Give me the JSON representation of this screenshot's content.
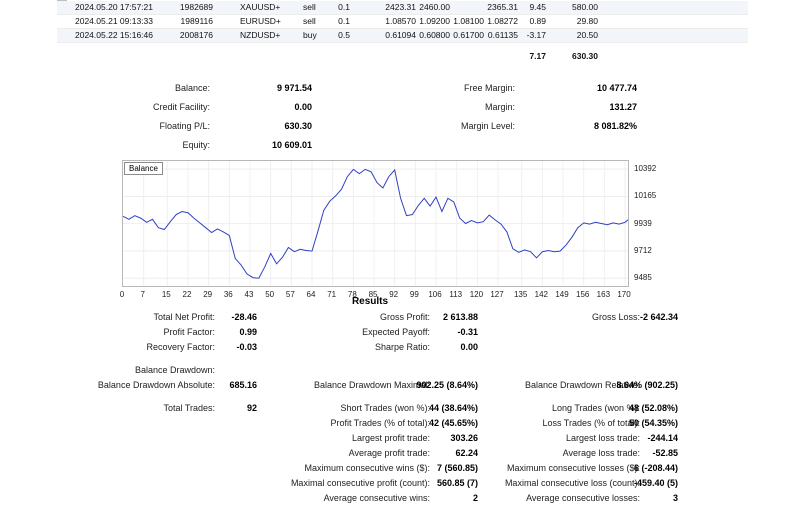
{
  "trades": {
    "rows": [
      {
        "time": "2024.05.20 17:57:21",
        "ticket": "1982689",
        "symbol": "XAUUSD+",
        "type": "sell",
        "volume": "0.1",
        "price": "2423.31",
        "sl": "2460.00",
        "tp": "",
        "close_price": "2365.31",
        "swap": "9.45",
        "profit": "580.00"
      },
      {
        "time": "2024.05.21 09:13:33",
        "ticket": "1989116",
        "symbol": "EURUSD+",
        "type": "sell",
        "volume": "0.1",
        "price": "1.08570",
        "sl": "1.09200",
        "tp": "1.08100",
        "close_price": "1.08272",
        "swap": "0.89",
        "profit": "29.80"
      },
      {
        "time": "2024.05.22 15:16:46",
        "ticket": "2008176",
        "symbol": "NZDUSD+",
        "type": "buy",
        "volume": "0.5",
        "price": "0.61094",
        "sl": "0.60800",
        "tp": "0.61700",
        "close_price": "0.61135",
        "swap": "-3.17",
        "profit": "20.50"
      }
    ],
    "totals": {
      "swap": "7.17",
      "profit": "630.30"
    }
  },
  "account": {
    "rows_left": [
      {
        "label": "Balance:",
        "value": "9 971.54"
      },
      {
        "label": "Credit Facility:",
        "value": "0.00"
      },
      {
        "label": "Floating P/L:",
        "value": "630.30"
      },
      {
        "label": "Equity:",
        "value": "10 609.01"
      }
    ],
    "rows_right": [
      {
        "label": "Free Margin:",
        "value": "10 477.74"
      },
      {
        "label": "Margin:",
        "value": "131.27"
      },
      {
        "label": "Margin Level:",
        "value": "8 081.82%"
      }
    ]
  },
  "chart_data": {
    "type": "line",
    "title": "Balance",
    "legend": "Balance",
    "xlabel": "",
    "ylabel": "",
    "grid": true,
    "legend_position": "top-left",
    "line_color": "#3040c4",
    "x_range": [
      0,
      171
    ],
    "y_range": [
      9420,
      10460
    ],
    "x_ticks": [
      0,
      7,
      15,
      22,
      29,
      36,
      43,
      50,
      57,
      64,
      71,
      78,
      85,
      92,
      99,
      106,
      113,
      120,
      127,
      135,
      142,
      149,
      156,
      163,
      170
    ],
    "y_ticks": [
      10392,
      10165,
      9939,
      9712,
      9485
    ],
    "series": [
      {
        "name": "Balance",
        "points": [
          [
            0,
            10000
          ],
          [
            2,
            9975
          ],
          [
            4,
            10005
          ],
          [
            6,
            9985
          ],
          [
            8,
            9950
          ],
          [
            10,
            9975
          ],
          [
            12,
            9905
          ],
          [
            14,
            9890
          ],
          [
            16,
            9955
          ],
          [
            18,
            10015
          ],
          [
            20,
            10040
          ],
          [
            22,
            10030
          ],
          [
            24,
            9985
          ],
          [
            26,
            9945
          ],
          [
            28,
            9905
          ],
          [
            30,
            9865
          ],
          [
            32,
            9895
          ],
          [
            34,
            9870
          ],
          [
            36,
            9840
          ],
          [
            38,
            9650
          ],
          [
            40,
            9595
          ],
          [
            42,
            9520
          ],
          [
            44,
            9490
          ],
          [
            46,
            9485
          ],
          [
            48,
            9580
          ],
          [
            50,
            9690
          ],
          [
            52,
            9605
          ],
          [
            54,
            9660
          ],
          [
            56,
            9740
          ],
          [
            58,
            9705
          ],
          [
            60,
            9725
          ],
          [
            62,
            9715
          ],
          [
            64,
            9710
          ],
          [
            66,
            9875
          ],
          [
            68,
            10050
          ],
          [
            70,
            10125
          ],
          [
            72,
            10170
          ],
          [
            74,
            10225
          ],
          [
            76,
            10330
          ],
          [
            78,
            10390
          ],
          [
            80,
            10355
          ],
          [
            82,
            10390
          ],
          [
            84,
            10370
          ],
          [
            86,
            10280
          ],
          [
            88,
            10235
          ],
          [
            90,
            10330
          ],
          [
            92,
            10385
          ],
          [
            94,
            10150
          ],
          [
            96,
            10005
          ],
          [
            98,
            10015
          ],
          [
            100,
            10090
          ],
          [
            102,
            10150
          ],
          [
            104,
            10085
          ],
          [
            106,
            10160
          ],
          [
            108,
            10040
          ],
          [
            110,
            10150
          ],
          [
            112,
            10120
          ],
          [
            114,
            9985
          ],
          [
            116,
            9940
          ],
          [
            118,
            9965
          ],
          [
            120,
            9945
          ],
          [
            122,
            9955
          ],
          [
            124,
            10010
          ],
          [
            126,
            9970
          ],
          [
            128,
            9935
          ],
          [
            130,
            9870
          ],
          [
            132,
            9730
          ],
          [
            134,
            9700
          ],
          [
            136,
            9720
          ],
          [
            138,
            9705
          ],
          [
            140,
            9655
          ],
          [
            142,
            9705
          ],
          [
            144,
            9715
          ],
          [
            146,
            9705
          ],
          [
            148,
            9710
          ],
          [
            150,
            9760
          ],
          [
            152,
            9825
          ],
          [
            154,
            9905
          ],
          [
            156,
            9945
          ],
          [
            158,
            9935
          ],
          [
            160,
            9950
          ],
          [
            162,
            9940
          ],
          [
            164,
            9930
          ],
          [
            166,
            9945
          ],
          [
            168,
            9935
          ],
          [
            170,
            9950
          ],
          [
            171,
            9971
          ]
        ]
      }
    ]
  },
  "results": {
    "title": "Results",
    "rows": [
      {
        "cells": [
          "Total Net Profit:",
          "-28.46",
          "Gross Profit:",
          "2 613.88",
          "Gross Loss:",
          "-2 642.34"
        ]
      },
      {
        "cells": [
          "Profit Factor:",
          "0.99",
          "Expected Payoff:",
          "-0.31",
          "",
          ""
        ]
      },
      {
        "cells": [
          "Recovery Factor:",
          "-0.03",
          "Sharpe Ratio:",
          "0.00",
          "",
          ""
        ]
      },
      {
        "spacer": true
      },
      {
        "cells": [
          "Balance Drawdown:",
          "",
          "",
          "",
          "",
          ""
        ]
      },
      {
        "cells": [
          "Balance Drawdown Absolute:",
          "685.16",
          "Balance Drawdown Maximal:",
          "902.25 (8.64%)",
          "Balance Drawdown Relative:",
          "8.64% (902.25)"
        ]
      },
      {
        "spacer": true
      },
      {
        "cells": [
          "Total Trades:",
          "92",
          "Short Trades (won %):",
          "44 (38.64%)",
          "Long Trades (won %):",
          "48 (52.08%)"
        ]
      },
      {
        "cells": [
          "",
          "",
          "Profit Trades (% of total):",
          "42 (45.65%)",
          "Loss Trades (% of total):",
          "50 (54.35%)"
        ]
      },
      {
        "cells": [
          "",
          "",
          "Largest profit trade:",
          "303.26",
          "Largest loss trade:",
          "-244.14"
        ]
      },
      {
        "cells": [
          "",
          "",
          "Average profit trade:",
          "62.24",
          "Average loss trade:",
          "-52.85"
        ]
      },
      {
        "cells": [
          "",
          "",
          "Maximum consecutive wins ($):",
          "7 (560.85)",
          "Maximum consecutive losses ($):",
          "6 (-208.44)"
        ]
      },
      {
        "cells": [
          "",
          "",
          "Maximal consecutive profit (count):",
          "560.85 (7)",
          "Maximal consecutive loss (count):",
          "-459.40 (5)"
        ]
      },
      {
        "cells": [
          "",
          "",
          "Average consecutive wins:",
          "2",
          "Average consecutive losses:",
          "3"
        ]
      }
    ]
  }
}
